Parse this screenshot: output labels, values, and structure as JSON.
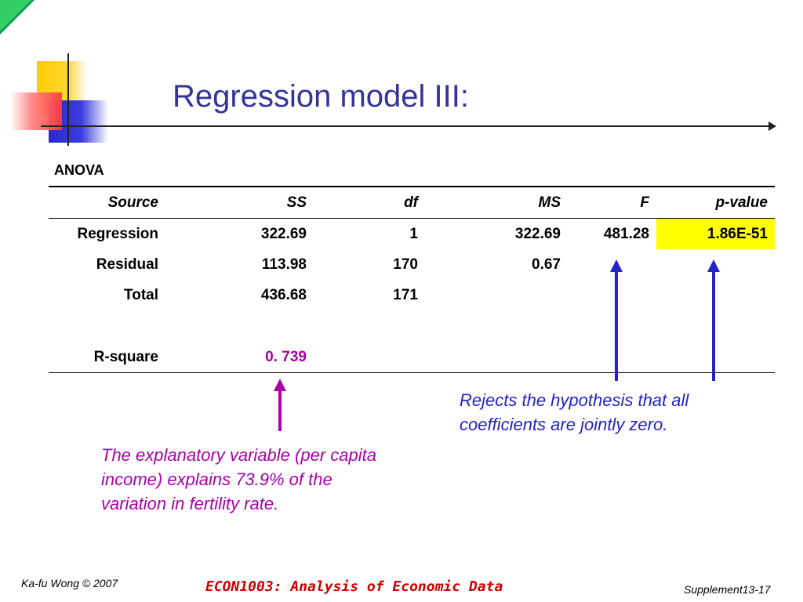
{
  "slide": {
    "title": "Regression model III:"
  },
  "anova": {
    "title": "ANOVA",
    "headers": [
      "Source",
      "SS",
      "df",
      "MS",
      "F",
      "p-value"
    ],
    "rows": [
      {
        "source": "Regression",
        "ss": "322.69",
        "df": "1",
        "ms": "322.69",
        "f": "481.28",
        "p": "1.86E-51"
      },
      {
        "source": "Residual",
        "ss": "113.98",
        "df": "170",
        "ms": "0.67",
        "f": "",
        "p": ""
      },
      {
        "source": "Total",
        "ss": "436.68",
        "df": "171",
        "ms": "",
        "f": "",
        "p": ""
      }
    ],
    "r_square": {
      "label": "R-square",
      "value": "0. 739"
    },
    "highlight_color": "#ffff00"
  },
  "annotations": {
    "reject": "Rejects the hypothesis that all coefficients are jointly zero.",
    "r_square_note": "The explanatory variable (per capita income) explains 73.9% of the variation in fertility rate."
  },
  "footer": {
    "author": "Ka-fu Wong © 2007",
    "course": "ECON1003: Analysis of Economic Data",
    "slide_number": "Supplement13-17"
  },
  "colors": {
    "title": "#333399",
    "annotation_blue": "#2323c8",
    "annotation_purple": "#aa00aa",
    "course_red": "#cc0000"
  }
}
